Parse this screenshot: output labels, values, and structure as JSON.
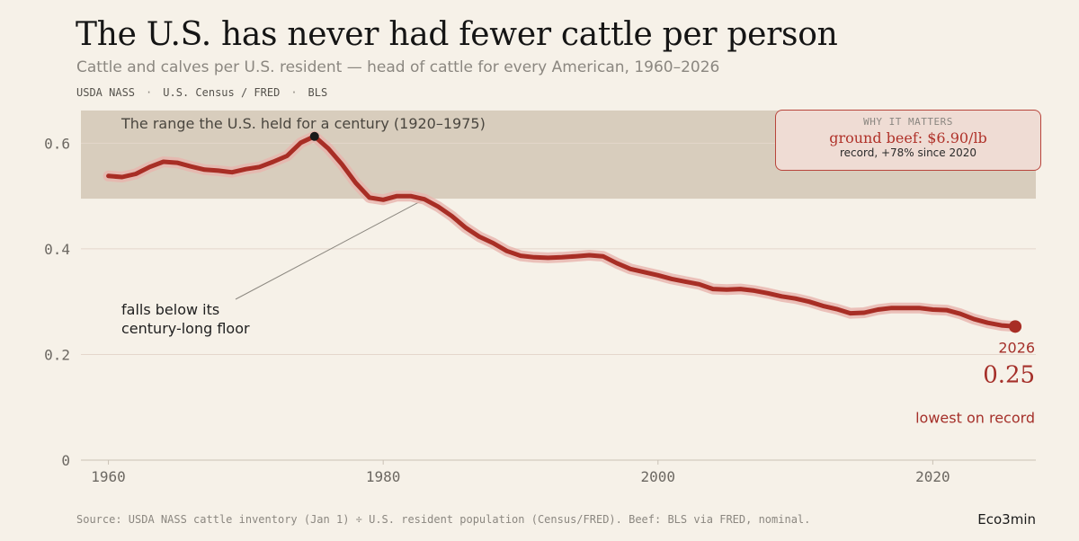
{
  "header": {
    "title": "The U.S. has never had fewer cattle per person",
    "subtitle": "Cattle and calves per U.S. resident — head of cattle for every American, 1960–2026",
    "sources": [
      "USDA NASS",
      "U.S. Census / FRED",
      "BLS"
    ],
    "separator": "·"
  },
  "callout": {
    "kicker": "WHY IT MATTERS",
    "headline": "ground beef: $6.90/lb",
    "detail": "record, +78% since 2020"
  },
  "footer": {
    "source": "Source: USDA NASS cattle inventory (Jan 1) ÷ U.S. resident population (Census/FRED). Beef: BLS via FRED, nominal.",
    "brand": "Eco3min"
  },
  "colors": {
    "line": "#a82e25",
    "line_glow": "#e9b4ad",
    "band": "#d8cdbd",
    "grid": "#e4d6cb",
    "background": "#f6f1e8"
  },
  "chart_data": {
    "type": "line",
    "title": "The U.S. has never had fewer cattle per person",
    "xlabel": "",
    "ylabel": "",
    "xlim": [
      1958,
      2027.5
    ],
    "ylim": [
      0,
      0.65
    ],
    "xticks": [
      1960,
      1980,
      2000,
      2020
    ],
    "yticks": [
      0,
      0.2,
      0.4,
      0.6
    ],
    "ytick_labels": [
      "0",
      "0.2",
      "0.4",
      "0.6"
    ],
    "grid": "horizontal",
    "band": {
      "label": "The range the U.S. held for a century  (1920–1975)",
      "ymin": 0.495,
      "ymax": 0.662
    },
    "series": [
      {
        "x": [
          1960,
          1961,
          1962,
          1963,
          1964,
          1965,
          1966,
          1967,
          1968,
          1969,
          1970,
          1971,
          1972,
          1973,
          1974,
          1975,
          1976,
          1977,
          1978,
          1979,
          1980,
          1981,
          1982,
          1983,
          1984,
          1985,
          1986,
          1987,
          1988,
          1989,
          1990,
          1991,
          1992,
          1993,
          1994,
          1995,
          1996,
          1997,
          1998,
          1999,
          2000,
          2001,
          2002,
          2003,
          2004,
          2005,
          2006,
          2007,
          2008,
          2009,
          2010,
          2011,
          2012,
          2013,
          2014,
          2015,
          2016,
          2017,
          2018,
          2019,
          2020,
          2021,
          2022,
          2023,
          2024,
          2025,
          2026
        ],
        "values": [
          0.538,
          0.536,
          0.542,
          0.555,
          0.565,
          0.563,
          0.556,
          0.55,
          0.548,
          0.545,
          0.551,
          0.555,
          0.565,
          0.576,
          0.601,
          0.613,
          0.59,
          0.56,
          0.525,
          0.497,
          0.493,
          0.5,
          0.5,
          0.494,
          0.48,
          0.462,
          0.44,
          0.423,
          0.411,
          0.396,
          0.387,
          0.384,
          0.383,
          0.384,
          0.386,
          0.388,
          0.386,
          0.373,
          0.362,
          0.356,
          0.35,
          0.343,
          0.338,
          0.333,
          0.324,
          0.323,
          0.324,
          0.321,
          0.316,
          0.31,
          0.306,
          0.3,
          0.292,
          0.286,
          0.278,
          0.279,
          0.285,
          0.288,
          0.288,
          0.288,
          0.285,
          0.284,
          0.277,
          0.267,
          0.26,
          0.255,
          0.253
        ]
      }
    ],
    "annotations": {
      "peak": {
        "x": 1975,
        "y": 0.613
      },
      "floor_note": {
        "text_lines": [
          "falls below its",
          "century-long floor"
        ],
        "target_x": 1983,
        "target_y": 0.494
      },
      "end": {
        "year_label": "2026",
        "value_label": "0.25",
        "note": "lowest on record",
        "x": 2026,
        "y": 0.253
      }
    }
  }
}
